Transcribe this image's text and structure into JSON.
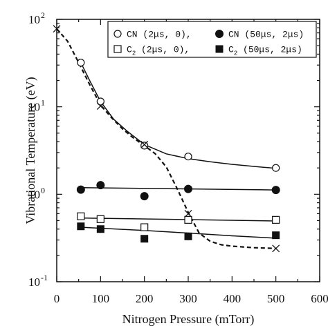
{
  "chart_data": {
    "type": "scatter",
    "xlabel": "Nitrogen Pressure (mTorr)",
    "ylabel": "Vibrational Temperature (eV)",
    "xlim": [
      0,
      600
    ],
    "ylim": [
      0.1,
      100
    ],
    "yscale": "log",
    "x_ticks": [
      "0",
      "100",
      "200",
      "300",
      "400",
      "500",
      "600"
    ],
    "y_ticks": [
      {
        "value": 0.1,
        "base": "10",
        "exp": "-1"
      },
      {
        "value": 1,
        "base": "10",
        "exp": "0"
      },
      {
        "value": 10,
        "base": "10",
        "exp": "1"
      },
      {
        "value": 100,
        "base": "10",
        "exp": "2"
      }
    ],
    "legend": [
      {
        "marker": "circle-open",
        "species": "CN",
        "sub": "",
        "params": "(2μs, 0),"
      },
      {
        "marker": "circle-filled",
        "species": "CN",
        "sub": "",
        "params": "(50μs, 2μs)"
      },
      {
        "marker": "square-open",
        "species": "C",
        "sub": "2",
        "params": "(2μs, 0),"
      },
      {
        "marker": "square-filled",
        "species": "C",
        "sub": "2",
        "params": "(50μs, 2μs)"
      }
    ],
    "legend_placement": "top-right",
    "series": [
      {
        "marker": "circle-open",
        "x": [
          55,
          100,
          200,
          300,
          500
        ],
        "y": [
          32,
          11.5,
          3.6,
          2.7,
          2.0
        ]
      },
      {
        "marker": "circle-filled",
        "x": [
          55,
          100,
          200,
          300,
          500
        ],
        "y": [
          1.13,
          1.27,
          0.95,
          1.15,
          1.12
        ]
      },
      {
        "marker": "square-open",
        "x": [
          55,
          100,
          200,
          300,
          500
        ],
        "y": [
          0.56,
          0.52,
          0.42,
          0.51,
          0.51
        ]
      },
      {
        "marker": "square-filled",
        "x": [
          55,
          100,
          200,
          300,
          500
        ],
        "y": [
          0.43,
          0.4,
          0.31,
          0.33,
          0.34
        ]
      },
      {
        "marker": "cross",
        "x": [
          0,
          100,
          200,
          300,
          500
        ],
        "y": [
          78,
          10.2,
          3.7,
          0.6,
          0.24
        ]
      }
    ],
    "fit_curves": [
      {
        "style": "solid",
        "x": [
          55,
          75,
          100,
          130,
          160,
          200,
          250,
          300,
          350,
          400,
          450,
          500
        ],
        "y": [
          32,
          20,
          11.5,
          7.2,
          5.3,
          3.7,
          2.9,
          2.55,
          2.35,
          2.2,
          2.08,
          1.98
        ]
      },
      {
        "style": "solid",
        "x": [
          55,
          500
        ],
        "y": [
          1.19,
          1.12
        ]
      },
      {
        "style": "solid",
        "x": [
          55,
          500
        ],
        "y": [
          0.535,
          0.495
        ]
      },
      {
        "style": "solid",
        "x": [
          55,
          200,
          300,
          400,
          500
        ],
        "y": [
          0.42,
          0.385,
          0.36,
          0.335,
          0.315
        ]
      },
      {
        "style": "dashed",
        "x": [
          0,
          25,
          50,
          75,
          100,
          125,
          150,
          175,
          200,
          225,
          250,
          275,
          300,
          325,
          350,
          375,
          400,
          450,
          500
        ],
        "y": [
          78,
          56,
          32,
          18,
          10.5,
          7.5,
          5.6,
          4.4,
          3.6,
          2.9,
          2.05,
          1.15,
          0.62,
          0.36,
          0.29,
          0.265,
          0.255,
          0.245,
          0.24
        ]
      }
    ]
  }
}
